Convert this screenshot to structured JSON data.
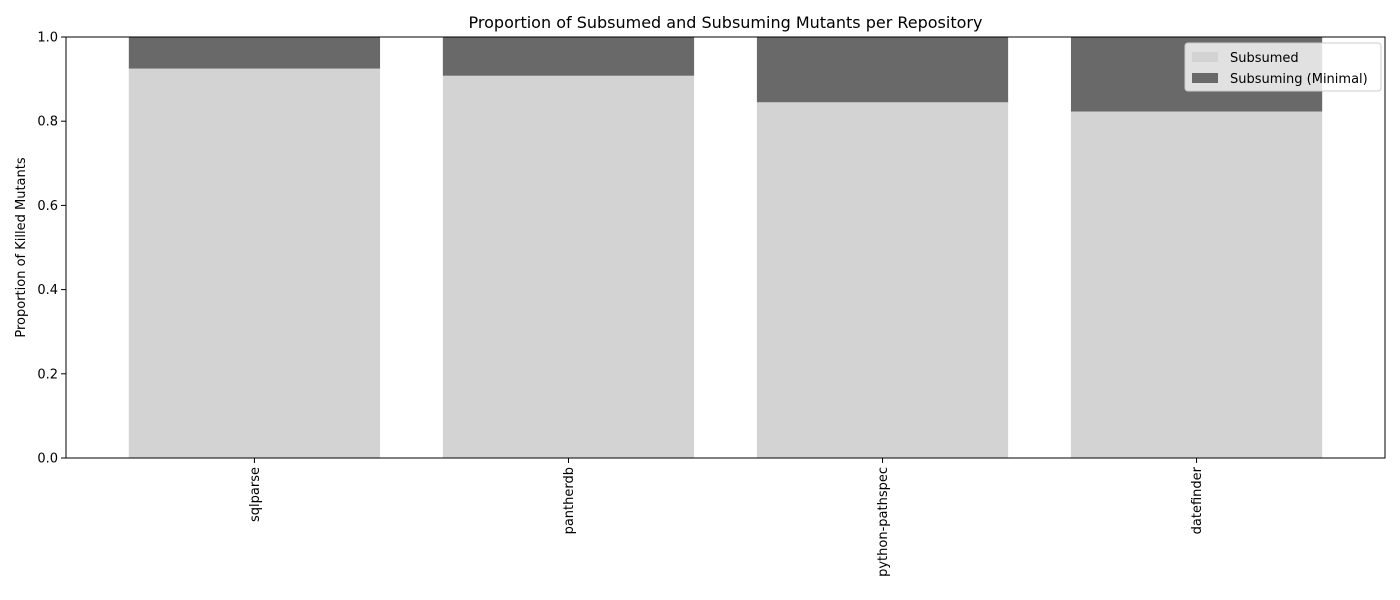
{
  "chart_data": {
    "type": "bar",
    "stacked": true,
    "title": "Proportion of Subsumed and Subsuming Mutants per Repository",
    "xlabel": "",
    "ylabel": "Proportion of Killed Mutants",
    "ylim": [
      0,
      1.0
    ],
    "yticks": [
      "0.0",
      "0.2",
      "0.4",
      "0.6",
      "0.8",
      "1.0"
    ],
    "categories": [
      "sqlparse",
      "pantherdb",
      "python-pathspec",
      "datefinder"
    ],
    "series": [
      {
        "name": "Subsumed",
        "color": "#d3d3d3",
        "values": [
          0.925,
          0.908,
          0.845,
          0.823
        ]
      },
      {
        "name": "Subsuming (Minimal)",
        "color": "#696969",
        "values": [
          0.075,
          0.092,
          0.155,
          0.177
        ]
      }
    ],
    "legend_position": "top-right",
    "grid": false
  }
}
